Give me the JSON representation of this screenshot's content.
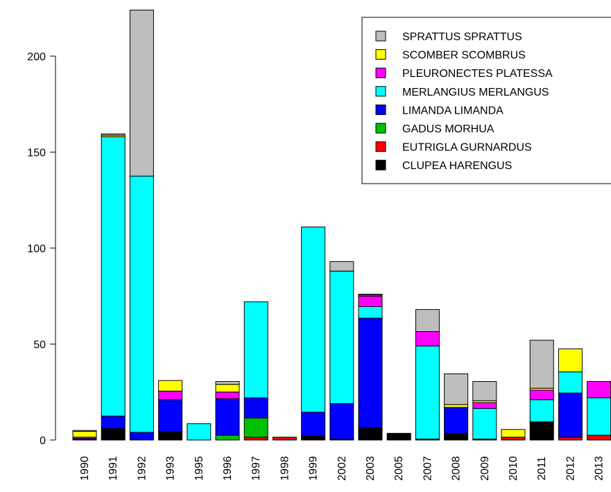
{
  "chart_data": {
    "type": "bar",
    "stacked": true,
    "title": "",
    "xlabel": "",
    "ylabel": "",
    "ylim": [
      0,
      224
    ],
    "yticks": [
      0,
      50,
      100,
      150,
      200
    ],
    "categories": [
      "1990",
      "1991",
      "1992",
      "1993",
      "1995",
      "1996",
      "1997",
      "1998",
      "1999",
      "2002",
      "2003",
      "2005",
      "2007",
      "2008",
      "2009",
      "2010",
      "2011",
      "2012",
      "2013"
    ],
    "series": [
      {
        "name": "CLUPEA HARENGUS",
        "color": "#000000",
        "values": [
          0,
          6,
          0,
          4.5,
          0,
          0,
          0,
          0,
          2,
          0.5,
          6.5,
          3.5,
          0,
          3.5,
          0,
          0,
          9.5,
          0,
          0
        ]
      },
      {
        "name": "EUTRIGLA GURNARDUS",
        "color": "#ff0000",
        "values": [
          0,
          0,
          0,
          0,
          0,
          0,
          1.5,
          1.5,
          0,
          0,
          0,
          0,
          0,
          0,
          0,
          1.5,
          0,
          1.5,
          2.5
        ]
      },
      {
        "name": "GADUS MORHUA",
        "color": "#00c000",
        "values": [
          0,
          0,
          0,
          0,
          0,
          2.5,
          10,
          0,
          0,
          0,
          0,
          0,
          0,
          0,
          0,
          0,
          0,
          0,
          0
        ]
      },
      {
        "name": "LIMANDA LIMANDA",
        "color": "#0000ff",
        "values": [
          0.8,
          6.5,
          4,
          16.5,
          0,
          19,
          10.5,
          0,
          12.5,
          18.5,
          57,
          0,
          0.5,
          13.5,
          0.5,
          0,
          0,
          23,
          0
        ]
      },
      {
        "name": "MERLANGIUS MERLANGUS",
        "color": "#00ffff",
        "values": [
          0,
          145.5,
          133.5,
          0,
          8.5,
          0,
          50,
          0,
          96.5,
          69,
          6,
          0,
          48.5,
          0,
          16,
          0,
          11.5,
          11,
          19.5
        ]
      },
      {
        "name": "PLEURONECTES PLATESSA",
        "color": "#ff00ff",
        "values": [
          0.7,
          0,
          0,
          4.5,
          0,
          3.5,
          0,
          0,
          0,
          0,
          5.5,
          0,
          7.5,
          0,
          3,
          0,
          5,
          0,
          8.5
        ]
      },
      {
        "name": "SCOMBER SCOMBRUS",
        "color": "#ffff00",
        "values": [
          3,
          0.8,
          0,
          5.5,
          0,
          4,
          0,
          0,
          0,
          0,
          0.5,
          0,
          0,
          1.5,
          1,
          4,
          1,
          12,
          0
        ]
      },
      {
        "name": "SPRATTUS SPRATTUS",
        "color": "#bebebe",
        "values": [
          0.5,
          0.7,
          86.5,
          0,
          0,
          1.5,
          0,
          0,
          0,
          5,
          0.5,
          0,
          11.5,
          16,
          10,
          0,
          25,
          0,
          0
        ]
      }
    ],
    "legend": {
      "position": "top-right",
      "entries": [
        "SPRATTUS SPRATTUS",
        "SCOMBER SCOMBRUS",
        "PLEURONECTES PLATESSA",
        "MERLANGIUS MERLANGUS",
        "LIMANDA LIMANDA",
        "GADUS MORHUA",
        "EUTRIGLA GURNARDUS",
        "CLUPEA HARENGUS"
      ],
      "colors": [
        "#bebebe",
        "#ffff00",
        "#ff00ff",
        "#00ffff",
        "#0000ff",
        "#00c000",
        "#ff0000",
        "#000000"
      ]
    },
    "grid": false
  }
}
